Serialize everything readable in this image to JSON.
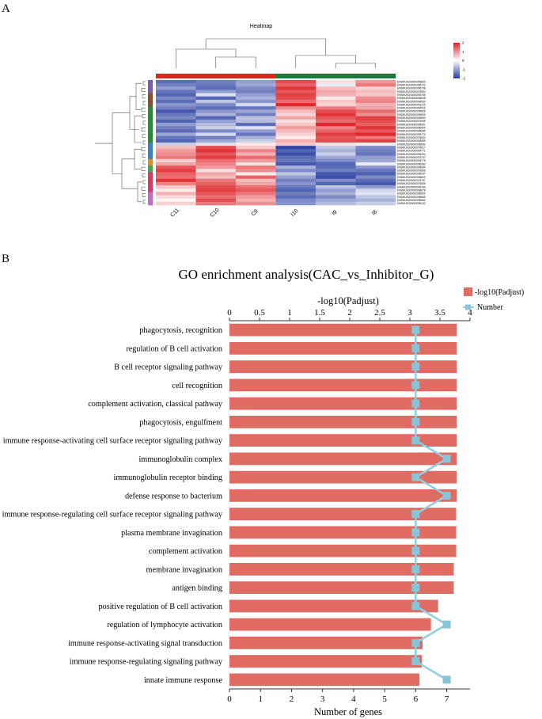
{
  "panels": {
    "a": "A",
    "b": "B"
  },
  "heatmap": {
    "title": "Heatmap",
    "columns": [
      "C11",
      "C10",
      "C9",
      "I10",
      "I9",
      "I8"
    ],
    "group_colors": [
      "#d42a22",
      "#d42a22",
      "#d42a22",
      "#1e7a3a",
      "#1e7a3a",
      "#1e7a3a"
    ],
    "scale_ticks": [
      "2",
      "1",
      "0",
      "-1",
      "-2"
    ],
    "gene_ids": [
      "ENSMUSG00000069650",
      "ENSMUSG00000095722",
      "ENSMUSG00000096708",
      "ENSMUSG00000076594",
      "ENSMUSG00000094755",
      "ENSMUSG00000095638",
      "ENSMUSG00000094530",
      "ENSMUSG00000051225",
      "ENSMUSG00000094006",
      "ENSMUSG00000095806",
      "ENSMUSG00000095695",
      "ENSMUSG00000094663",
      "ENSMUSG00000076496",
      "ENSMUSG00000095491",
      "ENSMUSG00000096500",
      "ENSMUSG00000096089",
      "ENSMUSG00000095770",
      "ENSMUSG00000076633",
      "ENSMUSG00000094655",
      "ENSMUSG00000096082",
      "ENSMUSG00000076617",
      "ENSMUSG00000094771",
      "ENSMUSG00000095294",
      "ENSMUSG00000076747",
      "ENSMUSG00000094778",
      "ENSMUSG00000096383",
      "ENSMUSG00000094644",
      "ENSMUSG00000076666",
      "ENSMUSG00000095297",
      "ENSMUSG00000096609",
      "ENSMUSG00000076797",
      "ENSMUSG00000076655",
      "ENSMUSG00000094789",
      "ENSMUSG00000096678",
      "ENSMUSG00000096590",
      "ENSMUSG00000096685",
      "ENSMUSG00000095660",
      "ENSMUSG00000095133"
    ],
    "row_group_colors": [
      "#7b5ea7",
      "#7b5ea7",
      "#7b5ea7",
      "#7b5ea7",
      "#8a4f2a",
      "#8a4f2a",
      "#8a4f2a",
      "#8a4f2a",
      "#2a8a3a",
      "#2a8a3a",
      "#2a8a3a",
      "#2a8a3a",
      "#2a8a3a",
      "#2a8a3a",
      "#2a8a3a",
      "#2a8a3a",
      "#2a8a3a",
      "#2a8a3a",
      "#2a8a3a",
      "#3f7fbf",
      "#3f7fbf",
      "#3f7fbf",
      "#3f7fbf",
      "#3f7fbf",
      "#e08a2e",
      "#e08a2e",
      "#3fa84f",
      "#3fa84f",
      "#d63a6a",
      "#d63a6a",
      "#d63a6a",
      "#d63a6a",
      "#d63a6a",
      "#d63a6a",
      "#c46bc4",
      "#c46bc4",
      "#c46bc4",
      "#c46bc4"
    ],
    "values": [
      [
        -1.5,
        -1.3,
        -1.0,
        1.6,
        0.3,
        0.9
      ],
      [
        -1.3,
        -1.4,
        -0.9,
        1.4,
        -0.2,
        1.2
      ],
      [
        -1.0,
        -1.5,
        -1.2,
        1.8,
        0.6,
        0.4
      ],
      [
        -1.4,
        -1.0,
        -1.3,
        1.5,
        0.8,
        0.6
      ],
      [
        -1.6,
        -0.3,
        -1.0,
        1.7,
        0.7,
        0.5
      ],
      [
        -1.2,
        -1.6,
        -0.8,
        1.6,
        0.2,
        1.0
      ],
      [
        -1.5,
        -0.6,
        -1.1,
        1.3,
        0.5,
        1.1
      ],
      [
        -1.1,
        -1.2,
        -0.4,
        1.9,
        0.4,
        0.7
      ],
      [
        -1.3,
        -1.5,
        -1.4,
        1.0,
        1.2,
        0.8
      ],
      [
        -1.7,
        -1.1,
        -0.9,
        0.6,
        1.6,
        1.3
      ],
      [
        -1.4,
        -0.8,
        -1.3,
        0.4,
        1.8,
        1.0
      ],
      [
        -1.2,
        -1.6,
        -0.6,
        0.8,
        1.5,
        1.7
      ],
      [
        -1.6,
        -1.0,
        -0.7,
        0.3,
        1.3,
        1.6
      ],
      [
        -1.0,
        -0.7,
        -1.5,
        0.5,
        1.9,
        1.4
      ],
      [
        -1.3,
        -0.5,
        -0.3,
        0.9,
        1.1,
        1.8
      ],
      [
        -1.5,
        -1.2,
        -1.0,
        0.6,
        1.4,
        1.5
      ],
      [
        -0.9,
        -0.4,
        -1.4,
        0.4,
        1.7,
        1.9
      ],
      [
        -1.4,
        -1.3,
        -0.8,
        0.2,
        1.5,
        1.2
      ],
      [
        -1.6,
        -0.9,
        -0.5,
        0.7,
        1.6,
        1.7
      ],
      [
        -0.5,
        -0.3,
        0.2,
        0.5,
        0.3,
        0.2
      ],
      [
        0.6,
        1.6,
        0.5,
        -1.9,
        -0.6,
        -1.2
      ],
      [
        0.9,
        1.8,
        1.1,
        -1.6,
        -0.8,
        -1.3
      ],
      [
        1.0,
        1.5,
        0.7,
        -1.8,
        -0.5,
        -1.4
      ],
      [
        1.2,
        1.7,
        1.3,
        -1.5,
        -0.9,
        -1.0
      ],
      [
        0.4,
        1.3,
        0.9,
        -1.4,
        -1.2,
        -0.9
      ],
      [
        0.8,
        1.1,
        0.3,
        -1.7,
        -1.6,
        -0.2
      ],
      [
        1.5,
        0.9,
        1.2,
        -0.8,
        -1.5,
        -1.1
      ],
      [
        1.7,
        0.3,
        1.0,
        -1.2,
        -1.3,
        -1.4
      ],
      [
        1.4,
        0.8,
        0.2,
        -0.6,
        -1.7,
        -1.6
      ],
      [
        1.3,
        0.6,
        1.4,
        -1.0,
        -1.8,
        -1.2
      ],
      [
        1.8,
        1.2,
        0.6,
        -1.3,
        -1.2,
        -1.5
      ],
      [
        1.1,
        1.4,
        0.8,
        -1.1,
        -1.6,
        -1.7
      ],
      [
        0.5,
        1.6,
        1.3,
        -1.4,
        -0.6,
        -1.0
      ],
      [
        0.2,
        1.7,
        1.5,
        -1.6,
        -1.0,
        -0.4
      ],
      [
        0.7,
        1.5,
        1.2,
        -1.3,
        -0.8,
        -0.3
      ],
      [
        0.3,
        1.3,
        0.9,
        -1.5,
        -1.2,
        -0.6
      ],
      [
        0.1,
        1.6,
        0.7,
        -1.2,
        -0.9,
        -0.8
      ],
      [
        0.4,
        1.2,
        1.0,
        -1.1,
        -0.7,
        -0.5
      ]
    ]
  },
  "chart_data": {
    "type": "bar",
    "title": "GO enrichment analysis(CAC_vs_Inhibitor_G)",
    "xlabel": "Number of genes",
    "x2label": "-log10(Padjust)",
    "categories": [
      "phagocytosis, recognition",
      "regulation of B cell activation",
      "B cell receptor signaling pathway",
      "cell recognition",
      "complement activation, classical pathway",
      "phagocytosis, engulfment",
      "immune response-activating cell surface receptor signaling pathway",
      "immunoglobulin complex",
      "immunoglobulin receptor binding",
      "defense response to bacterium",
      "immune response-regulating cell surface receptor signaling pathway",
      "plasma membrane invagination",
      "complement activation",
      "membrane invagination",
      "antigen binding",
      "positive regulation of B cell activation",
      "regulation of lymphocyte activation",
      "immune response-activating signal transduction",
      "immune response-regulating signaling pathway",
      "innate immune response"
    ],
    "series": [
      {
        "name": "-log10(Padjust)",
        "type": "bar",
        "axis": "top",
        "values": [
          3.78,
          3.78,
          3.78,
          3.78,
          3.78,
          3.78,
          3.78,
          3.78,
          3.78,
          3.78,
          3.77,
          3.77,
          3.77,
          3.73,
          3.73,
          3.47,
          3.35,
          3.21,
          3.2,
          3.16
        ]
      },
      {
        "name": "Number",
        "type": "line",
        "axis": "bottom",
        "values": [
          6,
          6,
          6,
          6,
          6,
          6,
          6,
          7,
          6,
          7,
          6,
          6,
          6,
          6,
          6,
          6,
          7,
          6,
          6,
          7
        ]
      }
    ],
    "xlim": [
      0,
      8
    ],
    "x2lim": [
      0,
      4.0
    ],
    "x_ticks": [
      "0",
      "1",
      "2",
      "3",
      "4",
      "5",
      "6",
      "7"
    ],
    "x2_ticks": [
      "0",
      "0.5",
      "1",
      "1.5",
      "2",
      "2.5",
      "3",
      "3.5",
      "4"
    ],
    "colors": {
      "bar": "#e06b62",
      "line": "#8fcfe0",
      "marker": "#86c5d8"
    }
  }
}
